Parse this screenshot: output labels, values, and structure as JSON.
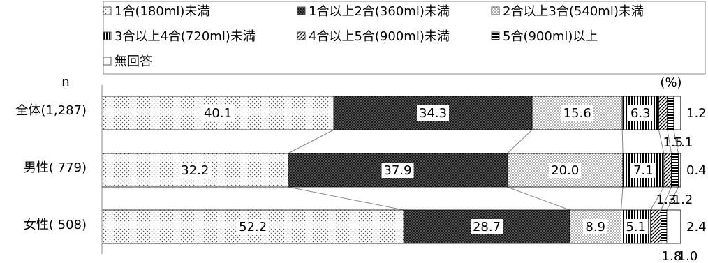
{
  "chart_data": {
    "type": "bar",
    "stacked": true,
    "orientation": "horizontal",
    "percent_stacked": true,
    "unit_label": "(%)",
    "n_label": "n",
    "categories": [
      "全体(1,287)",
      "男性( 779)",
      "女性( 508)"
    ],
    "series": [
      {
        "name": "1合(180ml)未満",
        "values": [
          40.1,
          32.2,
          52.2
        ],
        "pattern": "dots-sparse"
      },
      {
        "name": "1合以上2合(360ml)未満",
        "values": [
          34.3,
          37.9,
          28.7
        ],
        "pattern": "dark-dots"
      },
      {
        "name": "2合以上3合(540ml)未満",
        "values": [
          15.6,
          20.0,
          8.9
        ],
        "pattern": "dots-dense"
      },
      {
        "name": "3合以上4合(720ml)未満",
        "values": [
          6.3,
          7.1,
          5.1
        ],
        "pattern": "vertical-lines"
      },
      {
        "name": "4合以上5合(900ml)未満",
        "values": [
          1.5,
          1.3,
          1.8
        ],
        "pattern": "diagonal"
      },
      {
        "name": "5合(900ml)以上",
        "values": [
          1.1,
          1.2,
          1.0
        ],
        "pattern": "horizontal-lines"
      },
      {
        "name": "無回答",
        "values": [
          1.2,
          0.4,
          2.4
        ],
        "pattern": "none"
      }
    ],
    "xlim": [
      0,
      100
    ],
    "legend_position": "top"
  }
}
